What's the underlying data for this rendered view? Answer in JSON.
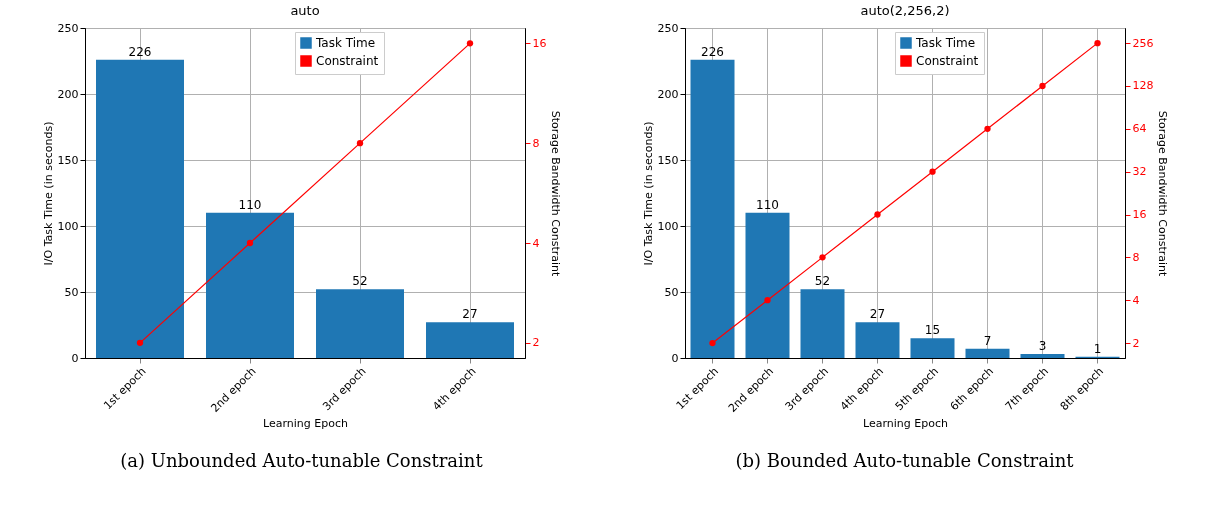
{
  "chart_data": [
    {
      "type": "bar",
      "title": "auto",
      "xlabel": "Learning Epoch",
      "ylabel": "I/O Task Time (in seconds)",
      "y2label": "Storage Bandwidth Constraint",
      "categories": [
        "1st epoch",
        "2nd epoch",
        "3rd epoch",
        "4th epoch"
      ],
      "series": [
        {
          "name": "Task Time",
          "color": "#1f77b4",
          "values": [
            226,
            110,
            52,
            27
          ],
          "value_labels": [
            "226",
            "110",
            "52",
            "27"
          ]
        },
        {
          "name": "Constraint",
          "type": "line",
          "axis": "y2",
          "color": "#ff0000",
          "values": [
            2,
            4,
            8,
            16
          ]
        }
      ],
      "marker": "circle",
      "ylim": [
        0,
        250
      ],
      "yticks": [
        0,
        50,
        100,
        150,
        200,
        250
      ],
      "y2lim": [
        1.8,
        17.8
      ],
      "y2ticks": [
        2,
        4,
        8,
        16
      ],
      "log": "y2",
      "grid": true,
      "legend": "top",
      "annotations": [
        "(a) Unbounded Auto-tunable Constraint"
      ]
    },
    {
      "type": "bar",
      "title": "auto(2,256,2)",
      "xlabel": "Learning Epoch",
      "ylabel": "I/O Task Time (in seconds)",
      "y2label": "Storage Bandwidth Constraint",
      "categories": [
        "1st epoch",
        "2nd epoch",
        "3rd epoch",
        "4th epoch",
        "5th epoch",
        "6th epoch",
        "7th epoch",
        "8th epoch"
      ],
      "series": [
        {
          "name": "Task Time",
          "color": "#1f77b4",
          "values": [
            226,
            110,
            52,
            27,
            15,
            7,
            3,
            1
          ],
          "value_labels": [
            "226",
            "110",
            "52",
            "27",
            "15",
            "7",
            "3",
            "1"
          ]
        },
        {
          "name": "Constraint",
          "type": "line",
          "axis": "y2",
          "color": "#ff0000",
          "values": [
            2,
            4,
            8,
            16,
            32,
            64,
            128,
            256
          ]
        }
      ],
      "marker": "circle",
      "ylim": [
        0,
        250
      ],
      "yticks": [
        0,
        50,
        100,
        150,
        200,
        250
      ],
      "y2lim": [
        1.57,
        327
      ],
      "y2ticks": [
        2,
        4,
        8,
        16,
        32,
        64,
        128,
        256
      ],
      "log": "y2",
      "grid": true,
      "legend": "top",
      "annotations": [
        "(b) Bounded Auto-tunable Constraint"
      ]
    }
  ]
}
